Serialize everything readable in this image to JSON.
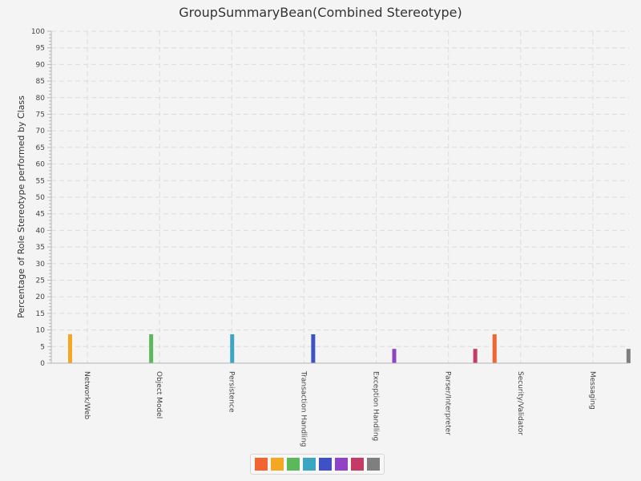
{
  "chart_data": {
    "type": "bar",
    "title": "GroupSummaryBean(Combined Stereotype)",
    "xlabel": "",
    "ylabel": "Percentage of Role Stereotype performed by Class",
    "ylim": [
      0,
      100
    ],
    "yticks": [
      0,
      5,
      10,
      15,
      20,
      25,
      30,
      35,
      40,
      45,
      50,
      55,
      60,
      65,
      70,
      75,
      80,
      85,
      90,
      95,
      100
    ],
    "grid": true,
    "legend_position": "bottom",
    "categories": [
      "Network/Web",
      "Object Model",
      "Persistence",
      "Transaction Handling",
      "Exception Handling",
      "Parser/Interpreter",
      "Security/Validator",
      "Messaging"
    ],
    "series": [
      {
        "color": "#f26430",
        "values": [
          0,
          0,
          0,
          0,
          0,
          0,
          8.7,
          0
        ]
      },
      {
        "color": "#f5a623",
        "values": [
          8.7,
          0,
          0,
          0,
          0,
          0,
          0,
          0
        ]
      },
      {
        "color": "#5cb85c",
        "values": [
          0,
          8.7,
          0,
          0,
          0,
          0,
          0,
          0
        ]
      },
      {
        "color": "#3aa6c4",
        "values": [
          0,
          0,
          8.7,
          0,
          0,
          0,
          0,
          0
        ]
      },
      {
        "color": "#3f51c4",
        "values": [
          0,
          0,
          0,
          8.7,
          0,
          0,
          0,
          0
        ]
      },
      {
        "color": "#8e44c4",
        "values": [
          0,
          0,
          0,
          0,
          4.3,
          0,
          0,
          0
        ]
      },
      {
        "color": "#c43c64",
        "values": [
          0,
          0,
          0,
          0,
          0,
          4.3,
          0,
          0
        ]
      },
      {
        "color": "#7f7f7f",
        "values": [
          0,
          0,
          0,
          0,
          0,
          0,
          0,
          4.3
        ]
      }
    ]
  }
}
